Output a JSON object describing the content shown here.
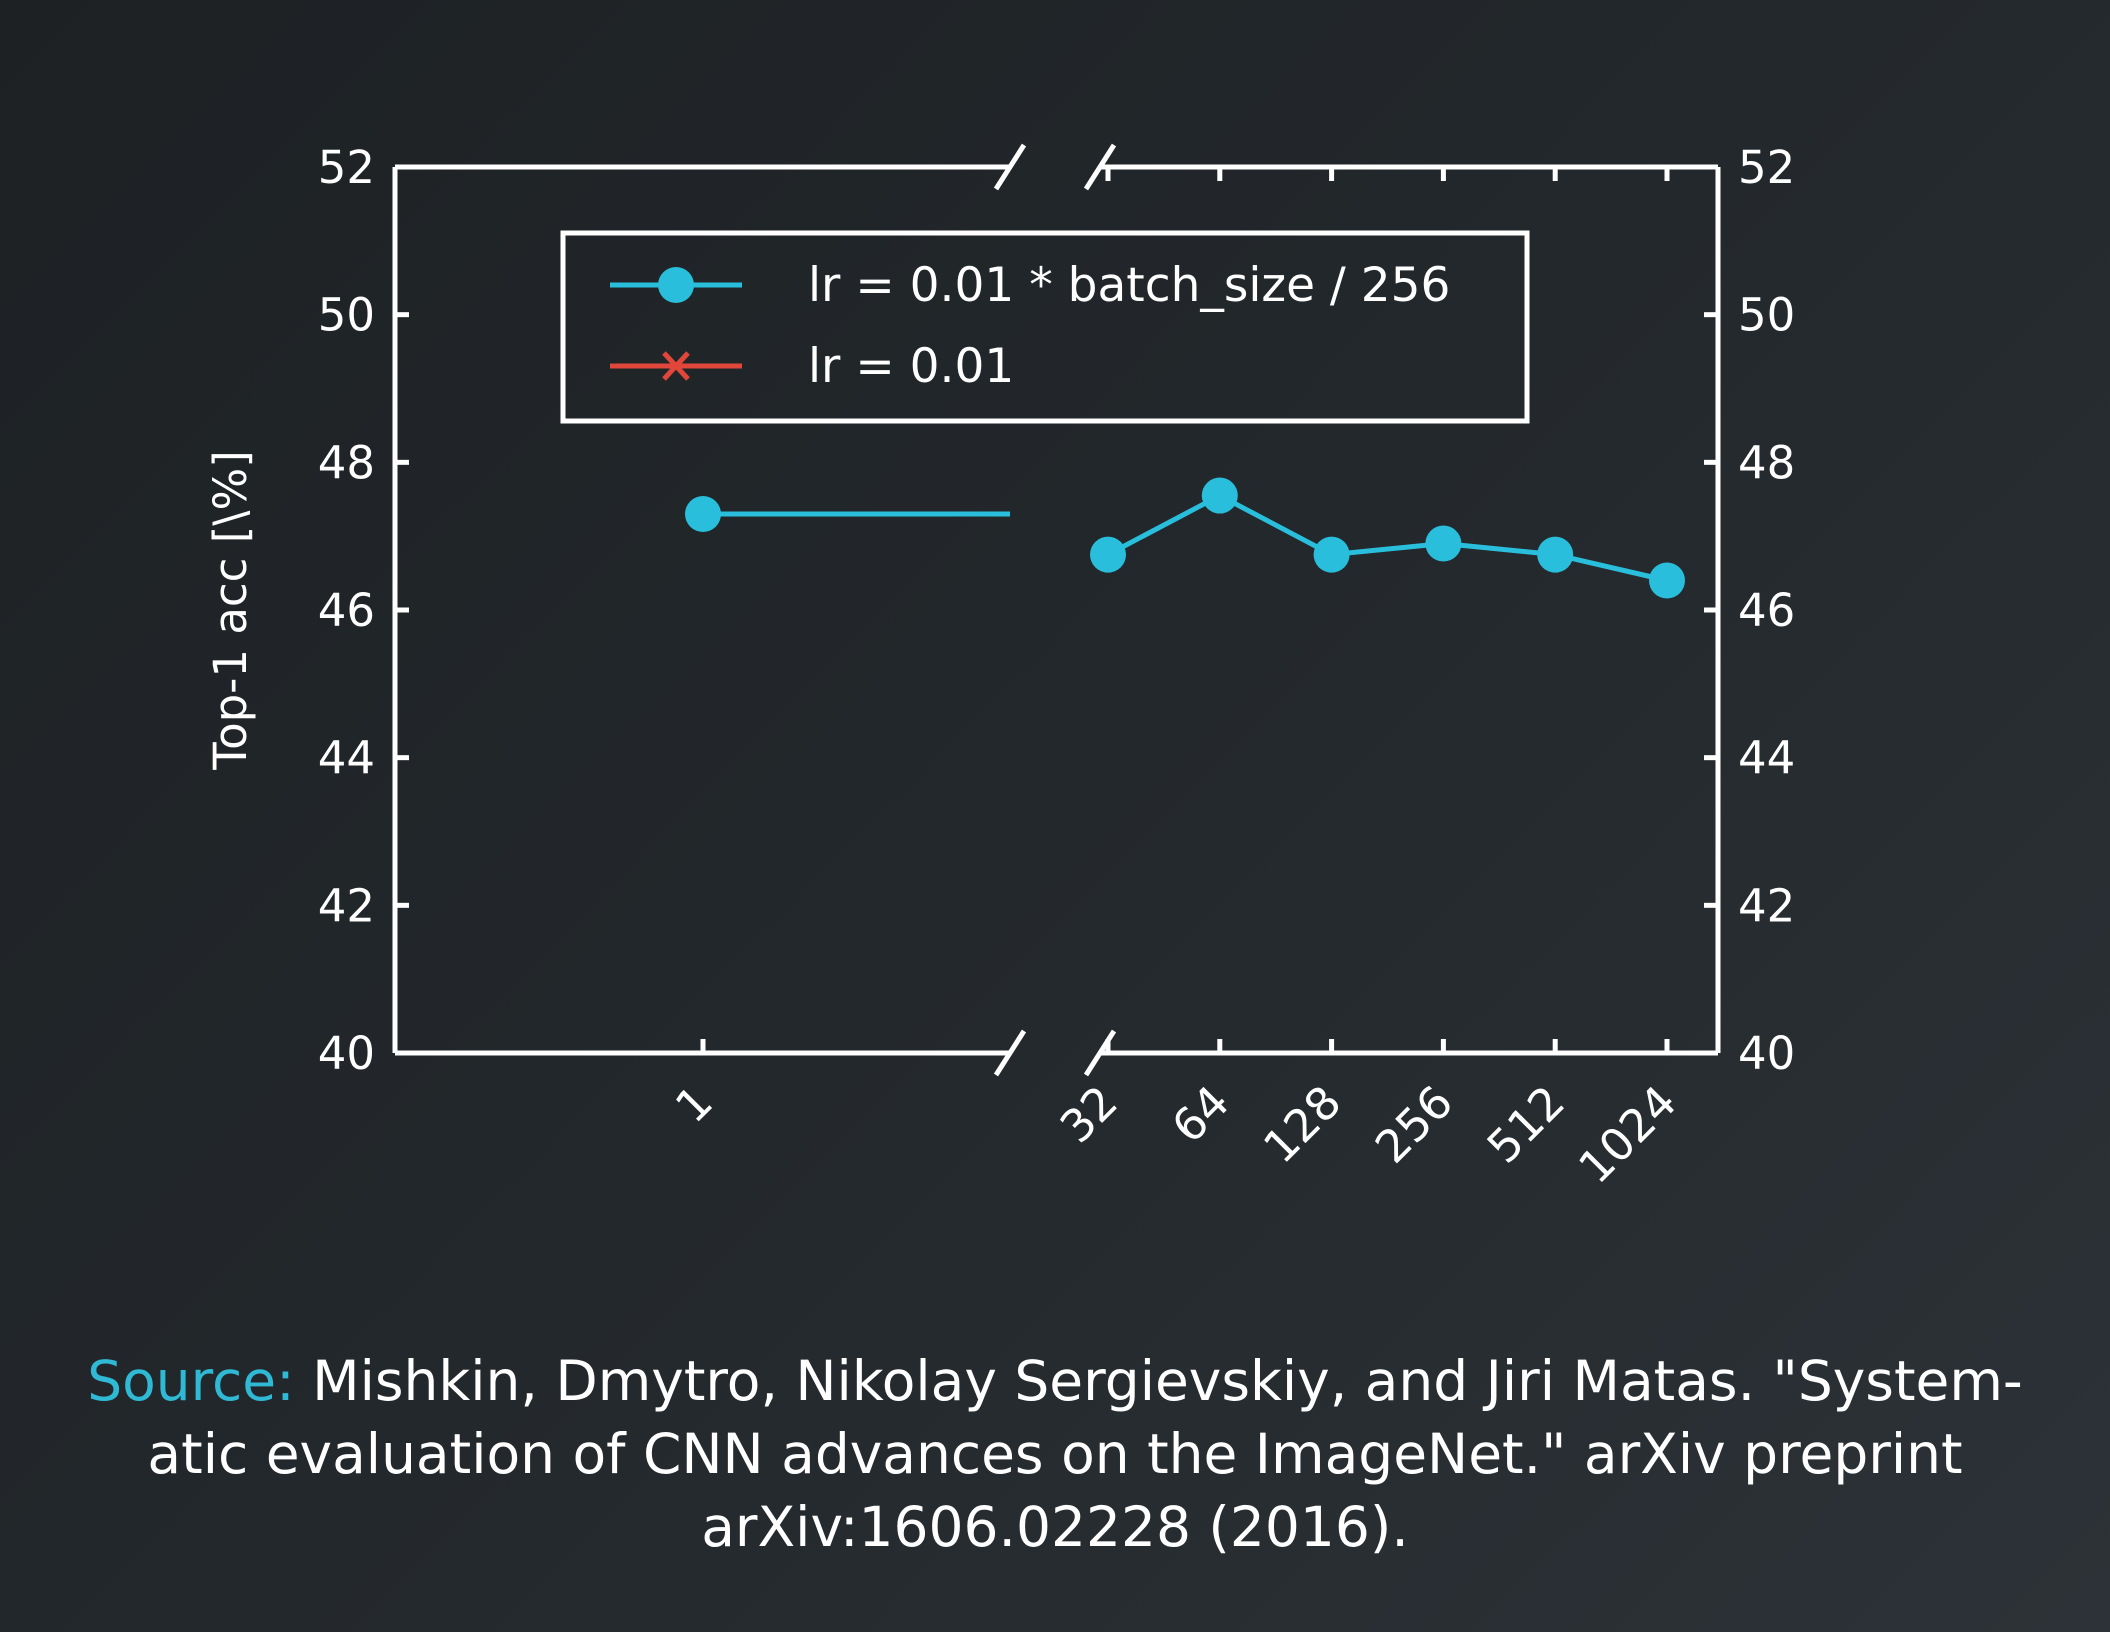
{
  "chart_data": {
    "type": "line",
    "title": "",
    "xlabel": "",
    "ylabel": "Top-1 acc [\\%]",
    "ylim": [
      40,
      52
    ],
    "yticks": [
      40,
      42,
      44,
      46,
      48,
      50,
      52
    ],
    "y_axis_both_sides": true,
    "x_scale": "log2",
    "x_axis_break": true,
    "categories": [
      "1",
      "32",
      "64",
      "128",
      "256",
      "512",
      "1024"
    ],
    "series": [
      {
        "name": "lr = 0.01 * batch_size / 256",
        "color": "#29bfdc",
        "marker": "circle",
        "x": [
          1,
          32,
          64,
          128,
          256,
          512,
          1024
        ],
        "y": [
          47.3,
          46.75,
          47.55,
          46.75,
          46.9,
          46.75,
          46.4
        ]
      },
      {
        "name": "lr = 0.01",
        "color": "#e0463a",
        "marker": "x",
        "x": [],
        "y": []
      }
    ],
    "legend_placement": "top-center",
    "grid": false
  },
  "caption": {
    "source_label": "Source:",
    "text": " Mishkin, Dmytro, Nikolay Sergievskiy, and Jiri Matas. \"System-atic evaluation of CNN advances on the ImageNet.\" arXiv preprint arXiv:1606.02228 (2016)."
  },
  "colors": {
    "accent": "#2fb9d4",
    "axis": "#ffffff"
  }
}
